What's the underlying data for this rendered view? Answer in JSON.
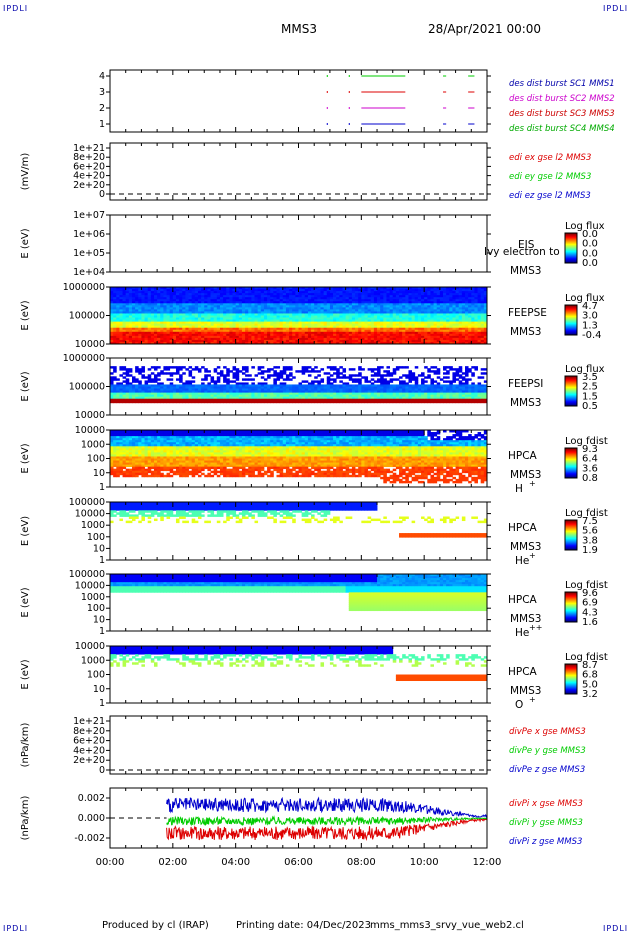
{
  "corners": {
    "tl": "IPDLI",
    "tr": "IPDLI",
    "bl": "IPDLI",
    "br": "IPDLI"
  },
  "header": {
    "spacecraft": "MMS3",
    "datetime": "28/Apr/2021 00:00"
  },
  "footer": {
    "produced": "Produced by cl (IRAP)",
    "printed": "Printing date: 04/Dec/2023",
    "file": "mms_mms3_srvy_vue_web2.cl"
  },
  "time_axis": {
    "range_hours": [
      0,
      12
    ],
    "tick_labels": [
      "00:00",
      "02:00",
      "04:00",
      "06:00",
      "08:00",
      "10:00",
      "12:00"
    ]
  },
  "colors": {
    "red": "#dd0000",
    "green": "#00cc00",
    "blue": "#0000cc",
    "magenta": "#cc00cc"
  },
  "chart_data": [
    {
      "type": "line",
      "name": "burst",
      "yticks": [
        "4",
        "3",
        "2",
        "1"
      ],
      "series": [
        {
          "name": "des dist burst SC1 MMS1",
          "y": 4,
          "segments_h": [
            [
              8.0,
              9.4
            ],
            [
              10.6,
              10.7
            ],
            [
              11.4,
              11.6
            ]
          ]
        },
        {
          "name": "des dist burst SC2 MMS2",
          "y": 3,
          "segments_h": [
            [
              8.0,
              9.4
            ],
            [
              10.6,
              10.7
            ],
            [
              11.4,
              11.6
            ]
          ]
        },
        {
          "name": "des dist burst SC3 MMS3",
          "y": 2,
          "segments_h": [
            [
              8.0,
              9.4
            ],
            [
              10.6,
              10.7
            ],
            [
              11.4,
              11.6
            ]
          ]
        },
        {
          "name": "des dist burst SC4 MMS4",
          "y": 1,
          "segments_h": [
            [
              8.0,
              9.4
            ],
            [
              10.6,
              10.7
            ],
            [
              11.4,
              11.6
            ]
          ]
        }
      ]
    },
    {
      "type": "line",
      "name": "edi",
      "ylabel": "(mV/m)",
      "yticks": [
        "1e+21",
        "8e+20",
        "6e+20",
        "4e+20",
        "2e+20",
        "0"
      ],
      "series": [
        {
          "name": "edi ex gse l2 MMS3",
          "values": []
        },
        {
          "name": "edi ey gse l2 MMS3",
          "values": []
        },
        {
          "name": "edi ez gse l2 MMS3",
          "values": []
        }
      ]
    },
    {
      "type": "heatmap",
      "name": "EIS",
      "ylabel": "E (eV)",
      "yticks": [
        "1e+07",
        "1e+06",
        "1e+05",
        "1e+04"
      ],
      "instrument": "EIS",
      "sc": "MMS3",
      "overlay": "Ivy electron to",
      "colorbar": {
        "title": "Log flux",
        "ticks": [
          "0.0",
          "0.0",
          "0.0",
          "0.0"
        ]
      }
    },
    {
      "type": "heatmap",
      "name": "FEEPSE",
      "ylabel": "E (eV)",
      "yticks": [
        "1000000",
        "100000",
        "10000"
      ],
      "instrument": "FEEPSE",
      "sc": "MMS3",
      "colorbar": {
        "title": "Log flux",
        "ticks": [
          "4.7",
          "3.0",
          "1.3",
          "-0.4"
        ]
      }
    },
    {
      "type": "heatmap",
      "name": "FEEPSI",
      "ylabel": "E (eV)",
      "yticks": [
        "1000000",
        "100000",
        "10000"
      ],
      "instrument": "FEEPSI",
      "sc": "MMS3",
      "colorbar": {
        "title": "Log flux",
        "ticks": [
          "3.5",
          "2.5",
          "1.5",
          "0.5"
        ]
      }
    },
    {
      "type": "heatmap",
      "name": "HPCA H+",
      "ylabel": "E (eV)",
      "yticks": [
        "10000",
        "1000",
        "100",
        "10",
        "1"
      ],
      "instrument": "HPCA",
      "sc": "MMS3",
      "species": "H",
      "charge": "+",
      "colorbar": {
        "title": "Log fdist",
        "ticks": [
          "9.3",
          "6.4",
          "3.6",
          "0.8"
        ]
      }
    },
    {
      "type": "heatmap",
      "name": "HPCA He+",
      "ylabel": "E (eV)",
      "yticks": [
        "100000",
        "10000",
        "1000",
        "100",
        "10",
        "1"
      ],
      "instrument": "HPCA",
      "sc": "MMS3",
      "species": "He",
      "charge": "+",
      "colorbar": {
        "title": "Log fdist",
        "ticks": [
          "7.5",
          "5.6",
          "3.8",
          "1.9"
        ]
      }
    },
    {
      "type": "heatmap",
      "name": "HPCA He++",
      "ylabel": "E (eV)",
      "yticks": [
        "100000",
        "10000",
        "1000",
        "100",
        "10",
        "1"
      ],
      "instrument": "HPCA",
      "sc": "MMS3",
      "species": "He",
      "charge": "++",
      "colorbar": {
        "title": "Log fdist",
        "ticks": [
          "9.6",
          "6.9",
          "4.3",
          "1.6"
        ]
      }
    },
    {
      "type": "heatmap",
      "name": "HPCA O+",
      "ylabel": "E (eV)",
      "yticks": [
        "10000",
        "1000",
        "100",
        "10",
        "1"
      ],
      "instrument": "HPCA",
      "sc": "MMS3",
      "species": "O",
      "charge": "+",
      "colorbar": {
        "title": "Log fdist",
        "ticks": [
          "8.7",
          "6.8",
          "5.0",
          "3.2"
        ]
      }
    },
    {
      "type": "line",
      "name": "divPe",
      "ylabel": "(nPa/km)",
      "yticks": [
        "1e+21",
        "8e+20",
        "6e+20",
        "4e+20",
        "2e+20",
        "0"
      ],
      "series": [
        {
          "name": "divPe x gse MMS3",
          "values": []
        },
        {
          "name": "divPe y gse MMS3",
          "values": []
        },
        {
          "name": "divPe z gse MMS3",
          "values": []
        }
      ]
    },
    {
      "type": "line",
      "name": "divPi",
      "ylabel": "(nPa/km)",
      "yticks": [
        "0.002",
        "0.000",
        "-0.002"
      ],
      "ylim": [
        -0.003,
        0.003
      ],
      "data_start_h": 1.8,
      "series": [
        {
          "name": "divPi x gse MMS3",
          "mean": -0.0015,
          "spread": 0.0007
        },
        {
          "name": "divPi y gse MMS3",
          "mean": -0.0003,
          "spread": 0.0004
        },
        {
          "name": "divPi z gse MMS3",
          "mean": 0.0013,
          "spread": 0.0007
        }
      ]
    }
  ]
}
